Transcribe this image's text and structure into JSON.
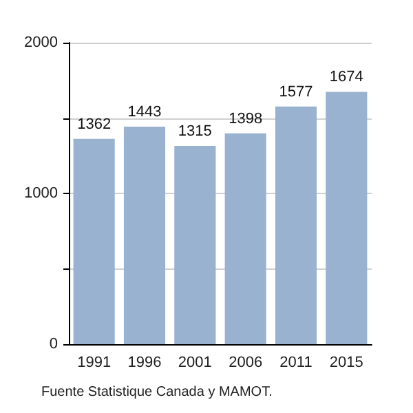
{
  "chart_data": {
    "type": "bar",
    "categories": [
      "1991",
      "1996",
      "2001",
      "2006",
      "2011",
      "2015"
    ],
    "values": [
      1362,
      1443,
      1315,
      1398,
      1577,
      1674
    ],
    "color": "#98b2cf",
    "ylim": [
      0,
      2000
    ],
    "yticks": [
      0,
      {
        "value": 500,
        "label": null
      },
      1000,
      {
        "value": 1500,
        "label": null
      },
      2000
    ],
    "grid": "y",
    "data_labels": true,
    "annotations": [
      "Fuente Statistique Canada y MAMOT."
    ]
  }
}
